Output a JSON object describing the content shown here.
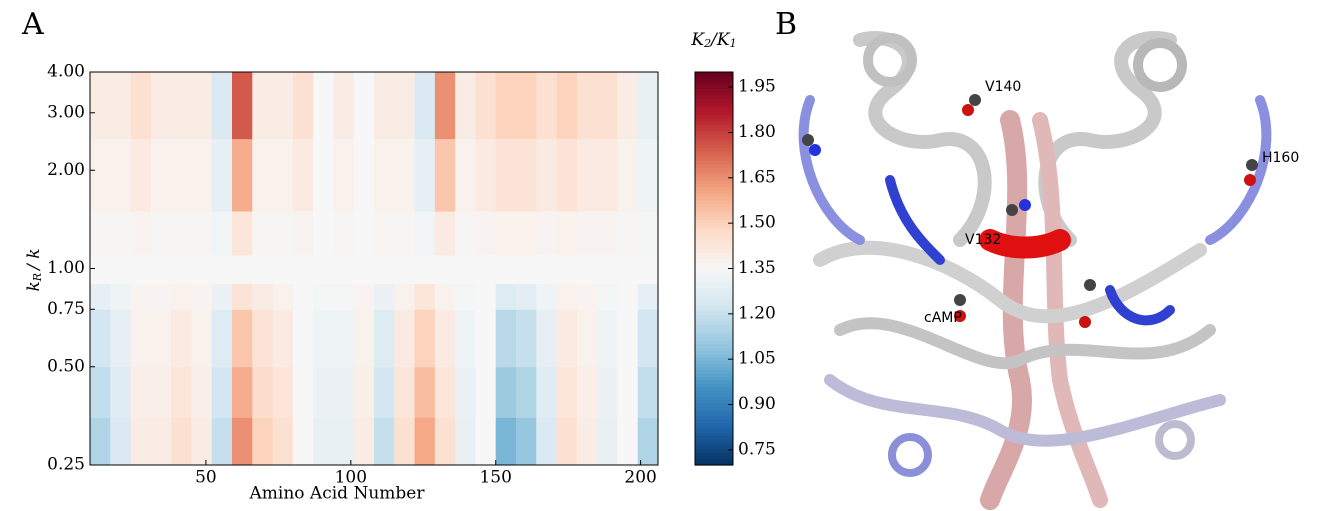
{
  "chart_data": {
    "type": "heatmap",
    "panel_label": "A",
    "xlabel": "Amino Acid Number",
    "ylabel": [
      "k",
      "R",
      "/ k"
    ],
    "colorbar_label": [
      "K",
      "2",
      "/K",
      "1"
    ],
    "xlim": [
      10,
      206
    ],
    "xticks": [
      50,
      100,
      150,
      200
    ],
    "ylim": [
      0.25,
      4
    ],
    "log_y": true,
    "yticks": [
      0.25,
      {
        "value": 0.5,
        "label": "0.50"
      },
      0.75,
      {
        "value": 1,
        "label": "1.00"
      },
      {
        "value": 2,
        "label": "2.00"
      },
      {
        "value": 3,
        "label": "3.00"
      },
      {
        "value": 4,
        "label": "4.00"
      }
    ],
    "clim": [
      0.7,
      2.0
    ],
    "cticks": [
      0.75,
      {
        "value": 0.9,
        "label": "0.90"
      },
      1.05,
      {
        "value": 1.2,
        "label": "1.20"
      },
      1.35,
      {
        "value": 1.5,
        "label": "1.50"
      },
      1.65,
      {
        "value": 1.8,
        "label": "1.80"
      },
      1.95
    ],
    "colormap": [
      "#053061",
      "#2166ac",
      "#4393c3",
      "#92c5de",
      "#d1e5f0",
      "#f7f7f7",
      "#fddbc7",
      "#f4a582",
      "#d6604d",
      "#b2182b",
      "#67001f"
    ],
    "xbins": [
      10,
      17,
      24,
      31,
      38,
      45,
      52,
      59,
      66,
      73,
      80,
      87,
      94,
      101,
      108,
      115,
      122,
      129,
      136,
      143,
      150,
      157,
      164,
      171,
      178,
      185,
      192,
      199,
      206
    ],
    "ybins": [
      0.25,
      0.35,
      0.5,
      0.75,
      0.9,
      1.1,
      1.5,
      2.5,
      4
    ],
    "z": [
      [
        1.15,
        1.25,
        1.4,
        1.4,
        1.45,
        1.4,
        1.2,
        1.65,
        1.5,
        1.45,
        1.35,
        1.3,
        1.3,
        1.4,
        1.2,
        1.45,
        1.6,
        1.45,
        1.3,
        1.35,
        1.05,
        1.1,
        1.25,
        1.45,
        1.4,
        1.3,
        1.35,
        1.15
      ],
      [
        1.19,
        1.27,
        1.39,
        1.39,
        1.43,
        1.39,
        1.23,
        1.59,
        1.47,
        1.43,
        1.35,
        1.31,
        1.31,
        1.39,
        1.23,
        1.43,
        1.55,
        1.43,
        1.31,
        1.35,
        1.11,
        1.15,
        1.27,
        1.43,
        1.39,
        1.31,
        1.35,
        1.19
      ],
      [
        1.23,
        1.29,
        1.38,
        1.38,
        1.41,
        1.38,
        1.26,
        1.53,
        1.44,
        1.41,
        1.35,
        1.32,
        1.32,
        1.38,
        1.26,
        1.41,
        1.5,
        1.41,
        1.32,
        1.35,
        1.17,
        1.2,
        1.29,
        1.41,
        1.38,
        1.32,
        1.35,
        1.23
      ],
      [
        1.29,
        1.32,
        1.37,
        1.37,
        1.38,
        1.37,
        1.31,
        1.44,
        1.4,
        1.38,
        1.35,
        1.34,
        1.34,
        1.37,
        1.31,
        1.38,
        1.43,
        1.38,
        1.34,
        1.35,
        1.26,
        1.28,
        1.32,
        1.38,
        1.37,
        1.34,
        1.35,
        1.29
      ],
      [
        1.35,
        1.35,
        1.35,
        1.35,
        1.35,
        1.35,
        1.35,
        1.35,
        1.35,
        1.35,
        1.35,
        1.35,
        1.35,
        1.35,
        1.35,
        1.35,
        1.35,
        1.35,
        1.35,
        1.35,
        1.35,
        1.35,
        1.35,
        1.35,
        1.35,
        1.35,
        1.35,
        1.35
      ],
      [
        1.36,
        1.36,
        1.37,
        1.36,
        1.36,
        1.36,
        1.33,
        1.43,
        1.36,
        1.36,
        1.37,
        1.35,
        1.36,
        1.35,
        1.36,
        1.36,
        1.33,
        1.41,
        1.36,
        1.37,
        1.38,
        1.38,
        1.37,
        1.38,
        1.37,
        1.37,
        1.36,
        1.34
      ],
      [
        1.38,
        1.38,
        1.41,
        1.38,
        1.38,
        1.38,
        1.29,
        1.59,
        1.38,
        1.38,
        1.41,
        1.35,
        1.38,
        1.35,
        1.38,
        1.38,
        1.29,
        1.53,
        1.38,
        1.41,
        1.44,
        1.44,
        1.41,
        1.44,
        1.41,
        1.41,
        1.38,
        1.32
      ],
      [
        1.4,
        1.4,
        1.45,
        1.4,
        1.4,
        1.4,
        1.25,
        1.75,
        1.4,
        1.4,
        1.45,
        1.35,
        1.4,
        1.35,
        1.4,
        1.4,
        1.25,
        1.65,
        1.4,
        1.45,
        1.5,
        1.5,
        1.45,
        1.5,
        1.45,
        1.45,
        1.4,
        1.3
      ]
    ]
  },
  "structure": {
    "panel_label": "B",
    "labels": [
      "V140",
      "H160",
      "V132",
      "cAMP"
    ]
  }
}
